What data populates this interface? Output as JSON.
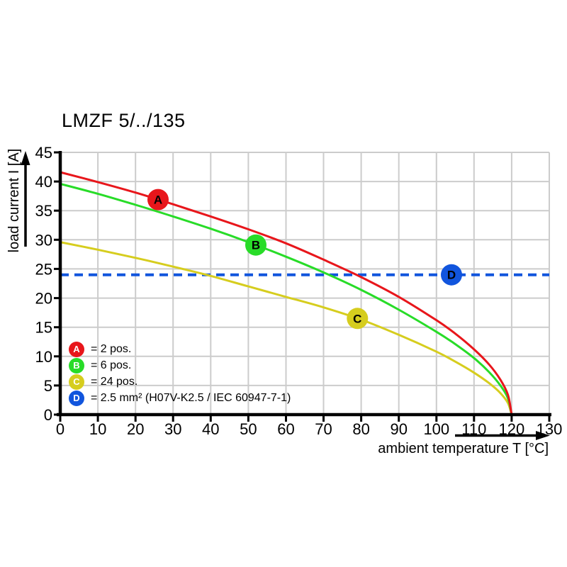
{
  "title": "LMZF 5/../135",
  "chart_data": {
    "type": "line",
    "title": "LMZF 5/../135",
    "xlabel": "ambient temperature T [°C]",
    "ylabel": "load current I [A]",
    "xlim": [
      0,
      130
    ],
    "ylim": [
      0,
      45
    ],
    "xticks": [
      0,
      10,
      20,
      30,
      40,
      50,
      60,
      70,
      80,
      90,
      100,
      110,
      120,
      130
    ],
    "yticks": [
      0,
      5,
      10,
      15,
      20,
      25,
      30,
      35,
      40,
      45
    ],
    "grid": true,
    "grid_color": "#cccccc",
    "axis_color": "#000000",
    "series": [
      {
        "key": "A",
        "label": "2 pos.",
        "color": "#e8161b",
        "style": "solid",
        "marker": {
          "x": 26,
          "y": 36.9
        },
        "points": [
          [
            0,
            41.6
          ],
          [
            10,
            39.9
          ],
          [
            20,
            38.1
          ],
          [
            30,
            36.1
          ],
          [
            40,
            34.0
          ],
          [
            50,
            31.8
          ],
          [
            60,
            29.4
          ],
          [
            70,
            26.6
          ],
          [
            80,
            23.6
          ],
          [
            90,
            20.2
          ],
          [
            100,
            16.2
          ],
          [
            105,
            13.9
          ],
          [
            110,
            11.2
          ],
          [
            114,
            8.6
          ],
          [
            117,
            6.0
          ],
          [
            119,
            3.4
          ],
          [
            120,
            0
          ]
        ]
      },
      {
        "key": "B",
        "label": "6 pos.",
        "color": "#28dc28",
        "style": "solid",
        "marker": {
          "x": 52,
          "y": 29.1
        },
        "points": [
          [
            0,
            39.6
          ],
          [
            10,
            37.9
          ],
          [
            20,
            36.0
          ],
          [
            30,
            34.0
          ],
          [
            40,
            31.9
          ],
          [
            50,
            29.6
          ],
          [
            60,
            27.1
          ],
          [
            70,
            24.4
          ],
          [
            80,
            21.4
          ],
          [
            90,
            18.0
          ],
          [
            100,
            14.2
          ],
          [
            105,
            12.1
          ],
          [
            110,
            9.7
          ],
          [
            114,
            7.3
          ],
          [
            117,
            5.0
          ],
          [
            119,
            2.8
          ],
          [
            120,
            0
          ]
        ]
      },
      {
        "key": "C",
        "label": "24 pos.",
        "color": "#d6cd1e",
        "style": "solid",
        "marker": {
          "x": 79,
          "y": 16.5
        },
        "points": [
          [
            0,
            29.6
          ],
          [
            10,
            28.3
          ],
          [
            20,
            26.9
          ],
          [
            30,
            25.4
          ],
          [
            40,
            23.8
          ],
          [
            50,
            22.0
          ],
          [
            60,
            20.2
          ],
          [
            70,
            18.4
          ],
          [
            80,
            16.3
          ],
          [
            90,
            13.7
          ],
          [
            100,
            10.8
          ],
          [
            105,
            9.1
          ],
          [
            110,
            7.2
          ],
          [
            114,
            5.4
          ],
          [
            117,
            3.7
          ],
          [
            119,
            2.0
          ],
          [
            120,
            0
          ]
        ]
      },
      {
        "key": "D",
        "label": "2.5 mm² (H07V-K2.5 / IEC 60947-7-1)",
        "color": "#1155dd",
        "style": "dashed",
        "marker": {
          "x": 104,
          "y": 24
        },
        "points": [
          [
            0,
            24
          ],
          [
            130,
            24
          ]
        ]
      }
    ],
    "legend": [
      {
        "key": "A",
        "color": "#e8161b",
        "text": "= 2 pos."
      },
      {
        "key": "B",
        "color": "#28dc28",
        "text": "= 6 pos."
      },
      {
        "key": "C",
        "color": "#d6cd1e",
        "text": "= 24 pos."
      },
      {
        "key": "D",
        "color": "#1155dd",
        "text": "= 2.5 mm² (H07V-K2.5 / IEC 60947-7-1)"
      }
    ],
    "legend_position": "inside-bottom-left"
  }
}
